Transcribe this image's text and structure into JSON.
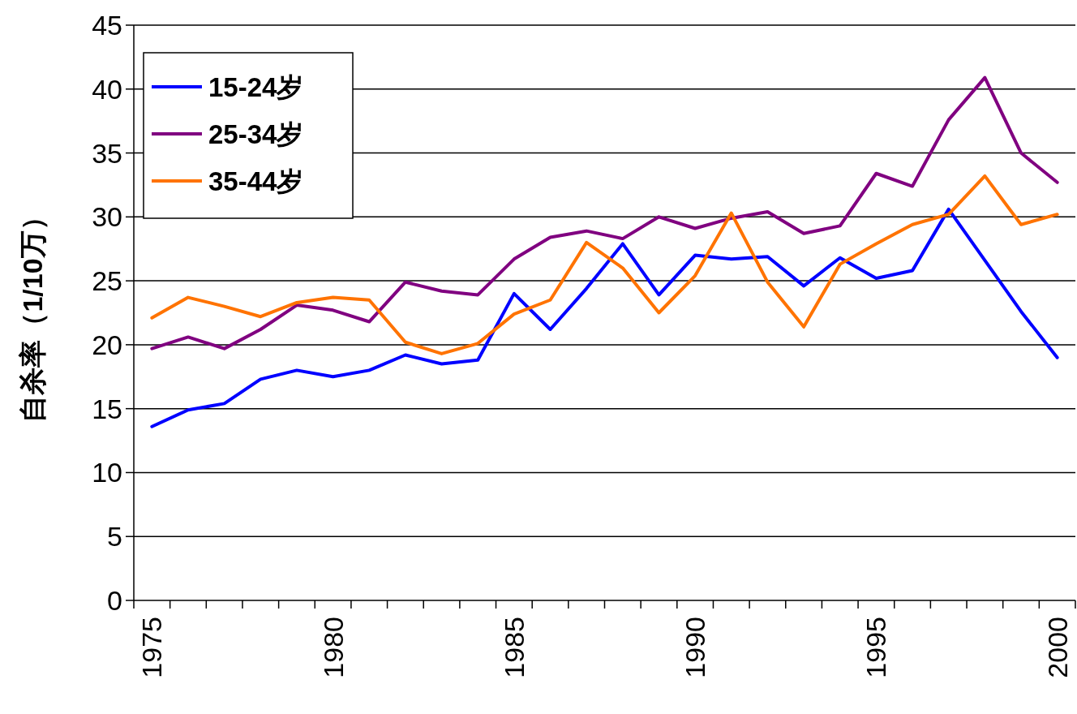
{
  "chart_data": {
    "type": "line",
    "ylabel": "自杀率（1/10万）",
    "categories": [
      "1975",
      null,
      null,
      null,
      null,
      "1980",
      null,
      null,
      null,
      null,
      "1985",
      null,
      null,
      null,
      null,
      "1990",
      null,
      null,
      null,
      null,
      "1995",
      null,
      null,
      null,
      null,
      "2000"
    ],
    "series": [
      {
        "name": "15-24岁",
        "color": "#0000ff",
        "values": [
          13.6,
          14.9,
          15.4,
          17.3,
          18.0,
          17.5,
          18.0,
          19.2,
          18.5,
          18.8,
          24.0,
          21.2,
          24.4,
          27.9,
          23.9,
          27.0,
          26.7,
          26.9,
          24.6,
          26.8,
          25.2,
          25.8,
          30.6,
          26.6,
          22.6,
          19.0
        ]
      },
      {
        "name": "25-34岁",
        "color": "#800080",
        "values": [
          19.7,
          20.6,
          19.7,
          21.2,
          23.1,
          22.7,
          21.8,
          24.9,
          24.2,
          23.9,
          26.7,
          28.4,
          28.9,
          28.3,
          30.0,
          29.1,
          29.9,
          30.4,
          28.7,
          29.3,
          33.4,
          32.4,
          37.6,
          40.9,
          35.0,
          32.7
        ]
      },
      {
        "name": "35-44岁",
        "color": "#ff7300",
        "values": [
          22.1,
          23.7,
          23.0,
          22.2,
          23.3,
          23.7,
          23.5,
          20.2,
          19.3,
          20.1,
          22.4,
          23.5,
          28.0,
          26.0,
          22.5,
          25.4,
          30.3,
          24.9,
          21.4,
          26.3,
          27.9,
          29.4,
          30.2,
          33.2,
          29.4,
          30.2
        ]
      }
    ],
    "ylim": [
      0,
      45
    ],
    "yticks": [
      0,
      5,
      10,
      15,
      20,
      25,
      30,
      35,
      40,
      45
    ],
    "grid": "y",
    "legend": "top left",
    "line_style": "solid"
  }
}
